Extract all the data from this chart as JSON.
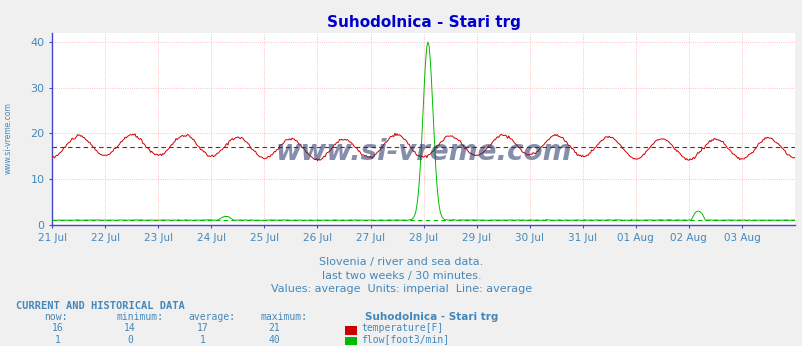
{
  "title": "Suhodolnica - Stari trg",
  "title_color": "#0000cc",
  "title_fontsize": 11,
  "bg_color": "#f0f0f0",
  "plot_bg_color": "#ffffff",
  "grid_color": "#ffaaaa",
  "ylim": [
    0,
    42
  ],
  "yticks": [
    0,
    10,
    20,
    30,
    40
  ],
  "tick_color": "#4488bb",
  "spine_color": "#4444cc",
  "num_points": 673,
  "temp_color": "#cc0000",
  "flow_color": "#00bb00",
  "temp_avg": 17,
  "temp_avg_color": "#cc0000",
  "flow_avg": 1,
  "flow_avg_color": "#00bb00",
  "temp_min": 14,
  "temp_max": 21,
  "temp_now": 16,
  "flow_min": 0,
  "flow_max": 40,
  "flow_now": 1,
  "watermark": "www.si-vreme.com",
  "subtitle1": "Slovenia / river and sea data.",
  "subtitle2": "last two weeks / 30 minutes.",
  "subtitle3": "Values: average  Units: imperial  Line: average",
  "footer_title": "CURRENT AND HISTORICAL DATA",
  "tick_labels": [
    "21 Jul",
    "22 Jul",
    "23 Jul",
    "24 Jul",
    "25 Jul",
    "26 Jul",
    "27 Jul",
    "28 Jul",
    "29 Jul",
    "30 Jul",
    "31 Jul",
    "01 Aug",
    "02 Aug",
    "03 Aug"
  ],
  "tick_positions": [
    0,
    48,
    96,
    144,
    192,
    240,
    288,
    336,
    384,
    432,
    480,
    528,
    576,
    624
  ]
}
